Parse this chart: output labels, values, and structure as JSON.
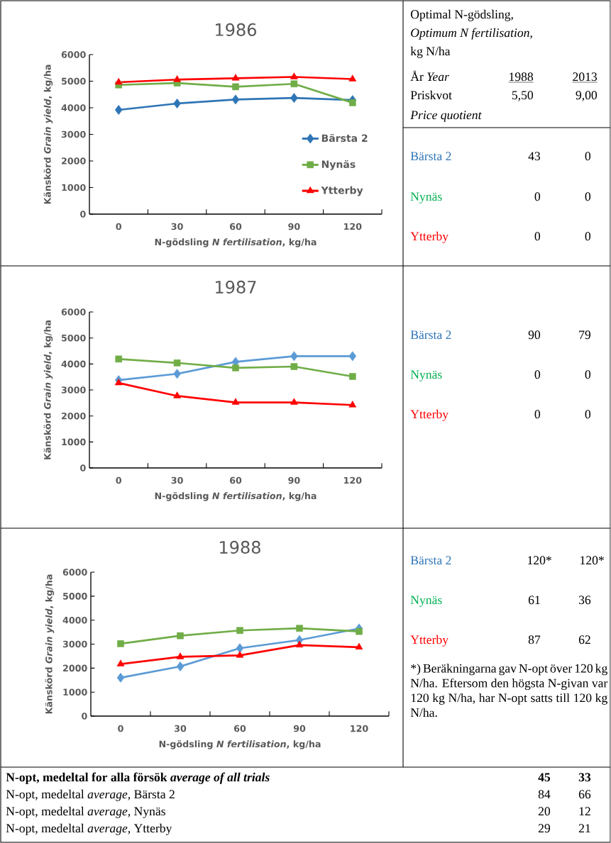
{
  "chart_data": [
    {
      "type": "line",
      "title": "1986",
      "xlabel": "N-gödsling *N fertilisation*, kg/ha",
      "ylabel": "Känskörd *Grain yield*, kg/ha",
      "categories": [
        "0",
        "30",
        "60",
        "90",
        "120"
      ],
      "ylim": [
        0,
        6000
      ],
      "yticks": [
        0,
        1000,
        2000,
        3000,
        4000,
        5000,
        6000
      ],
      "legend": "right",
      "series": [
        {
          "name": "Bärsta 2",
          "color": "#2e75b6",
          "marker": "diamond",
          "values": [
            3920,
            4160,
            4310,
            4370,
            4290
          ]
        },
        {
          "name": "Nynäs",
          "color": "#70ad47",
          "marker": "square",
          "values": [
            4860,
            4930,
            4790,
            4900,
            4190
          ]
        },
        {
          "name": "Ytterby",
          "color": "#ff0000",
          "marker": "triangle",
          "values": [
            4960,
            5060,
            5110,
            5160,
            5080
          ]
        }
      ]
    },
    {
      "type": "other",
      "annotations": [
        "Optimal N-gödsling,",
        "Optimum N fertilisation,",
        "kg N/ha",
        "År *Year*",
        "1988",
        "2013",
        "Priskvot",
        "5,50",
        "9,00",
        "Price quotient",
        "Bärsta 2",
        "43",
        "0",
        "Nynäs",
        "0",
        "0",
        "Ytterby",
        "0",
        "0"
      ]
    },
    {
      "type": "line",
      "title": "1987",
      "xlabel": "N-gödsling *N fertilisation*, kg/ha",
      "ylabel": "Känskörd *Grain yield*, kg/ha",
      "categories": [
        "0",
        "30",
        "60",
        "90",
        "120"
      ],
      "ylim": [
        0,
        6000
      ],
      "yticks": [
        0,
        1000,
        2000,
        3000,
        4000,
        5000,
        6000
      ],
      "series": [
        {
          "color": "#5b9bd5",
          "marker": "diamond",
          "values": [
            3380,
            3620,
            4080,
            4300,
            4300
          ]
        },
        {
          "color": "#70ad47",
          "marker": "square",
          "values": [
            4190,
            4040,
            3850,
            3900,
            3520
          ]
        },
        {
          "color": "#ff0000",
          "marker": "triangle",
          "values": [
            3270,
            2770,
            2520,
            2520,
            2420
          ]
        }
      ]
    },
    {
      "type": "other",
      "annotations": [
        "Bärsta 2",
        "90",
        "79",
        "Nynäs",
        "0",
        "0",
        "Ytterby",
        "0",
        "0"
      ]
    },
    {
      "type": "line",
      "title": "1988",
      "xlabel": "N-gödsling *N fertilisation*, kg/ha",
      "ylabel": "Känskörd *Grain yield*, kg/ha",
      "categories": [
        "0",
        "30",
        "60",
        "90",
        "120"
      ],
      "ylim": [
        0,
        6000
      ],
      "yticks": [
        0,
        1000,
        2000,
        3000,
        4000,
        5000,
        6000
      ],
      "series": [
        {
          "color": "#5b9bd5",
          "marker": "diamond",
          "values": [
            1600,
            2070,
            2830,
            3170,
            3650
          ]
        },
        {
          "color": "#70ad47",
          "marker": "square",
          "values": [
            3020,
            3350,
            3570,
            3660,
            3530
          ]
        },
        {
          "color": "#ff0000",
          "marker": "triangle",
          "values": [
            2170,
            2470,
            2530,
            2960,
            2870
          ]
        }
      ]
    },
    {
      "type": "other",
      "annotations": [
        "Bärsta 2",
        "120*",
        "120*",
        "Nynäs",
        "61",
        "36",
        "Ytterby",
        "87",
        "62",
        "*) Beräkningarna gav N-opt över 120 kg N/ha. Eftersom den högsta N-givan var 120 kg N/ha, har N-opt satts till 120 kg N/ha."
      ]
    },
    {
      "type": "other",
      "annotations": [
        "N-opt, medeltal for alla försök *average of all trials*",
        "45",
        "33",
        "N-opt, medeltal *average*, Bärsta 2",
        "84",
        "66",
        "N-opt, medeltal *average*, Nynäs",
        "20",
        "12",
        "N-opt, medeltal *average,* Ytterby",
        "29",
        "21"
      ]
    }
  ]
}
